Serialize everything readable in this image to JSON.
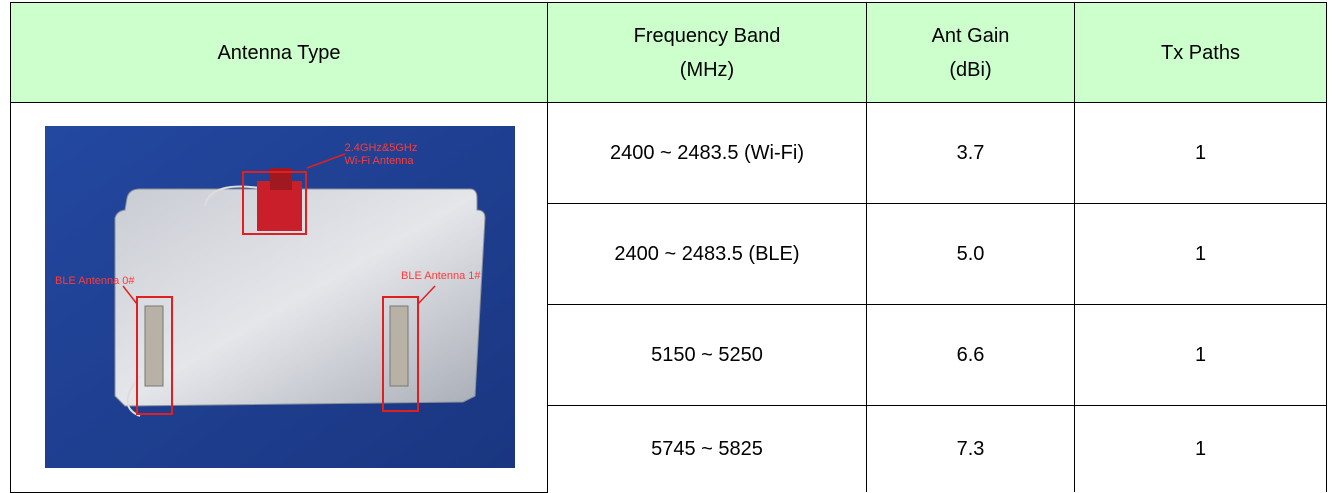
{
  "table": {
    "header": [
      [
        "Antenna Type"
      ],
      [
        "Frequency Band",
        "(MHz)"
      ],
      [
        "Ant Gain",
        "(dBi)"
      ],
      [
        "Tx Paths"
      ]
    ],
    "rows": [
      [
        "2400 ~ 2483.5 (Wi-Fi)",
        "3.7",
        "1"
      ],
      [
        "2400 ~ 2483.5 (BLE)",
        "5.0",
        "1"
      ],
      [
        "5150 ~ 5250",
        "6.6",
        "1"
      ],
      [
        "5745 ~ 5825",
        "7.3",
        "1"
      ]
    ],
    "photo_labels": {
      "wifi": [
        "2.4GHz&5GHz",
        "Wi-Fi Antenna"
      ],
      "ble0": "BLE Antenna 0#",
      "ble1": "BLE Antenna 1#"
    }
  }
}
